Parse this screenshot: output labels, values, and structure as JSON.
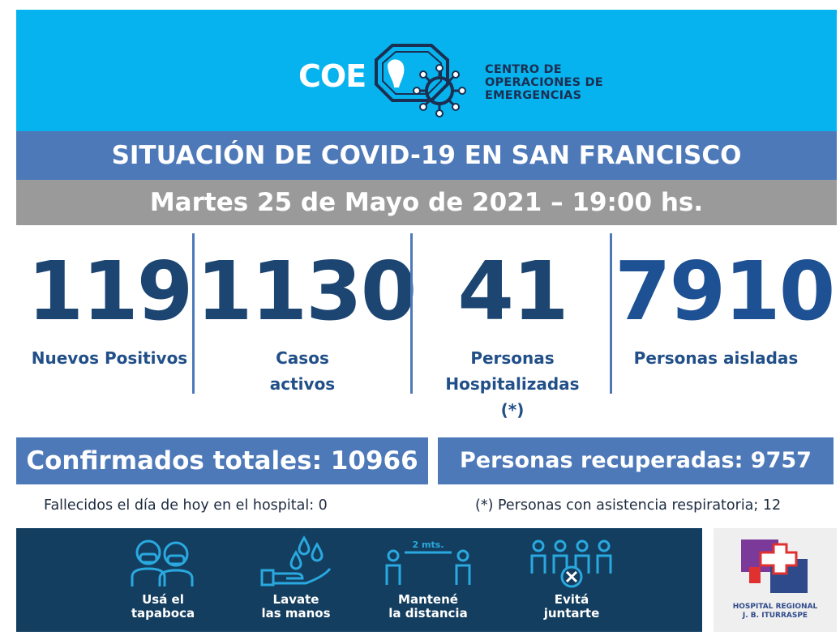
{
  "header": {
    "logo_abbr": "COE",
    "logo_lines": [
      "CENTRO DE",
      "OPERACIONES DE",
      "EMERGENCIAS"
    ]
  },
  "title": "SITUACIÓN DE COVID-19 EN SAN FRANCISCO",
  "date": "Martes 25 de Mayo de 2021 – 19:00 hs.",
  "stats": [
    {
      "value": "119",
      "label": [
        "Nuevos Positivos"
      ]
    },
    {
      "value": "1130",
      "label": [
        "Casos",
        "activos"
      ]
    },
    {
      "value": "41",
      "label": [
        "Personas",
        "Hospitalizadas",
        "(*)"
      ]
    },
    {
      "value": "7910",
      "label": [
        "Personas aisladas"
      ]
    }
  ],
  "totals": {
    "confirmed": "Confirmados totales: 10966",
    "recovered": "Personas recuperadas: 9757"
  },
  "notes": {
    "deaths": "Fallecidos el día de hoy en el hospital: 0",
    "respiratory": "(*) Personas con asistencia respiratoria; 12"
  },
  "tips": [
    {
      "icon": "face-mask-icon",
      "label": [
        "Usá el",
        "tapaboca"
      ]
    },
    {
      "icon": "hand-wash-icon",
      "label": [
        "Lavate",
        "las manos"
      ]
    },
    {
      "icon": "distance-icon",
      "label": [
        "Mantené",
        "la distancia"
      ],
      "distance_text": "2 mts."
    },
    {
      "icon": "no-gathering-icon",
      "label": [
        "Evitá",
        "juntarte"
      ]
    }
  ],
  "hospital": {
    "name": [
      "HOSPITAL REGIONAL",
      "J. B. ITURRASPE"
    ]
  },
  "colors": {
    "header_bg": "#07b3ee",
    "title_bg": "#4d79b9",
    "date_bg": "#9a9a9a",
    "number": "#1c4572",
    "label": "#214f88",
    "footer_bg": "#143e5f"
  }
}
